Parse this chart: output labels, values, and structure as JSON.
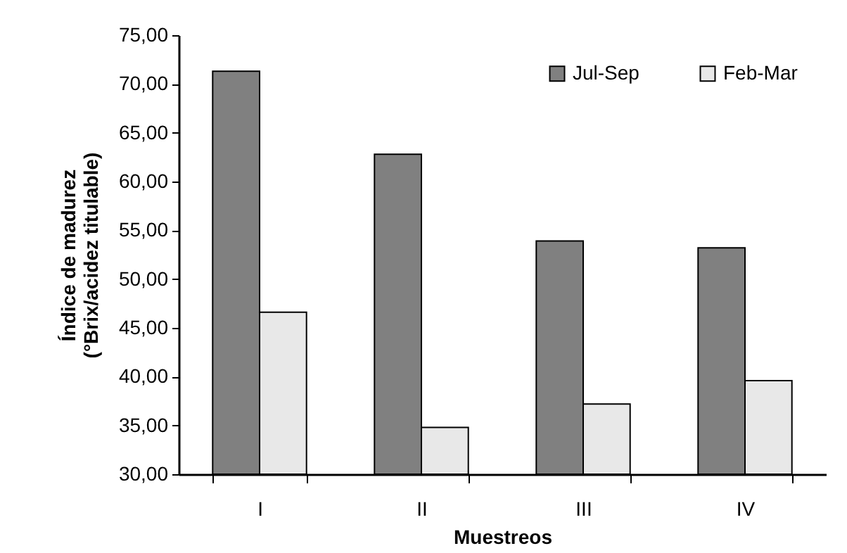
{
  "chart_data": {
    "type": "bar",
    "xlabel": "Muestreos",
    "ylabel": "Índice de madurez\n(°Brix/acidez titulable)",
    "categories": [
      "I",
      "II",
      "III",
      "IV"
    ],
    "series": [
      {
        "name": "Jul-Sep",
        "color": "#808080",
        "values": [
          71.3,
          62.8,
          53.9,
          53.2
        ]
      },
      {
        "name": "Feb-Mar",
        "color": "#e8e8e8",
        "values": [
          46.6,
          34.8,
          37.2,
          39.6
        ]
      }
    ],
    "ylim": [
      30,
      75
    ],
    "yticks": [
      {
        "value": 30,
        "label": "30,00"
      },
      {
        "value": 35,
        "label": "35,00"
      },
      {
        "value": 40,
        "label": "40,00"
      },
      {
        "value": 45,
        "label": "45,00"
      },
      {
        "value": 50,
        "label": "50,00"
      },
      {
        "value": 55,
        "label": "55,00"
      },
      {
        "value": 60,
        "label": "60,00"
      },
      {
        "value": 65,
        "label": "65,00"
      },
      {
        "value": 70,
        "label": "70,00"
      },
      {
        "value": 75,
        "label": "75,00"
      }
    ],
    "grid": false,
    "legend": "top right"
  }
}
